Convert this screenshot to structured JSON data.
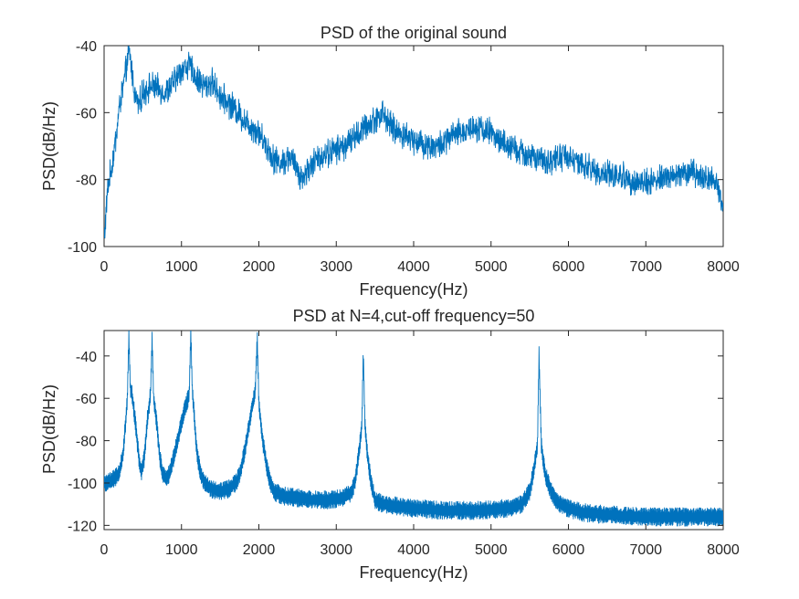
{
  "chart_data": [
    {
      "type": "line",
      "title": "PSD of the original sound",
      "xlabel": "Frequency(Hz)",
      "ylabel": "PSD(dB/Hz)",
      "xlim": [
        0,
        8000
      ],
      "ylim": [
        -100,
        -40
      ],
      "xticks": [
        0,
        1000,
        2000,
        3000,
        4000,
        5000,
        6000,
        7000,
        8000
      ],
      "yticks": [
        -100,
        -80,
        -60,
        -40
      ],
      "grid": false,
      "series_color": "#0072BD",
      "series": [
        {
          "x": [
            0,
            50,
            100,
            150,
            200,
            250,
            300,
            330,
            360,
            400,
            450,
            500,
            600,
            700,
            800,
            900,
            1000,
            1100,
            1200,
            1300,
            1400,
            1500,
            1600,
            1700,
            1800,
            1900,
            2000,
            2100,
            2200,
            2300,
            2400,
            2500,
            2560,
            2600,
            2700,
            2800,
            2900,
            3000,
            3100,
            3200,
            3300,
            3400,
            3500,
            3600,
            3700,
            3800,
            3900,
            4000,
            4100,
            4200,
            4300,
            4400,
            4500,
            4600,
            4700,
            4800,
            4900,
            5000,
            5100,
            5200,
            5300,
            5400,
            5500,
            5600,
            5700,
            5800,
            5900,
            6000,
            6100,
            6200,
            6300,
            6400,
            6500,
            6600,
            6700,
            6800,
            6900,
            7000,
            7100,
            7200,
            7300,
            7400,
            7500,
            7600,
            7700,
            7800,
            7900,
            8000
          ],
          "values": [
            -98,
            -82,
            -76,
            -68,
            -58,
            -52,
            -45,
            -42,
            -48,
            -55,
            -58,
            -54,
            -52,
            -53,
            -54,
            -51,
            -47,
            -46,
            -50,
            -52,
            -51,
            -55,
            -57,
            -59,
            -62,
            -64,
            -66,
            -70,
            -74,
            -75,
            -73,
            -77,
            -80,
            -78,
            -75,
            -73,
            -72,
            -71,
            -70,
            -68,
            -66,
            -64,
            -62,
            -60,
            -64,
            -66,
            -67,
            -68,
            -69,
            -70,
            -70,
            -69,
            -67,
            -66,
            -65,
            -64,
            -65,
            -66,
            -68,
            -70,
            -71,
            -72,
            -73,
            -74,
            -75,
            -74,
            -73,
            -73,
            -75,
            -76,
            -77,
            -78,
            -78,
            -79,
            -79,
            -80,
            -81,
            -81,
            -80,
            -80,
            -79,
            -79,
            -78,
            -78,
            -79,
            -80,
            -80,
            -88
          ]
        }
      ]
    },
    {
      "type": "line",
      "title": "PSD at N=4,cut-off frequency=50",
      "xlabel": "Frequency(Hz)",
      "ylabel": "PSD(dB/Hz)",
      "xlim": [
        0,
        8000
      ],
      "ylim": [
        -122,
        -28
      ],
      "xticks": [
        0,
        1000,
        2000,
        3000,
        4000,
        5000,
        6000,
        7000,
        8000
      ],
      "yticks": [
        -120,
        -100,
        -80,
        -60,
        -40
      ],
      "grid": false,
      "series_color": "#0072BD",
      "series": [
        {
          "x": [
            0,
            100,
            200,
            250,
            300,
            320,
            340,
            360,
            400,
            450,
            480,
            520,
            560,
            600,
            620,
            640,
            680,
            720,
            760,
            800,
            850,
            900,
            950,
            1000,
            1050,
            1100,
            1120,
            1140,
            1160,
            1200,
            1250,
            1300,
            1400,
            1500,
            1600,
            1700,
            1750,
            1800,
            1850,
            1900,
            1950,
            1980,
            2000,
            2050,
            2100,
            2150,
            2200,
            2300,
            2500,
            2700,
            2900,
            3100,
            3200,
            3250,
            3300,
            3330,
            3350,
            3370,
            3400,
            3450,
            3500,
            3600,
            3800,
            4000,
            4400,
            4800,
            5200,
            5400,
            5500,
            5560,
            5600,
            5620,
            5650,
            5700,
            5800,
            5900,
            6000,
            6200,
            6500,
            7000,
            7500,
            8000
          ],
          "values": [
            -100,
            -99,
            -95,
            -85,
            -60,
            -30,
            -55,
            -58,
            -70,
            -88,
            -95,
            -88,
            -70,
            -58,
            -32,
            -60,
            -72,
            -88,
            -96,
            -98,
            -95,
            -88,
            -80,
            -72,
            -64,
            -58,
            -29,
            -56,
            -66,
            -86,
            -96,
            -100,
            -103,
            -104,
            -103,
            -100,
            -96,
            -88,
            -78,
            -66,
            -58,
            -32,
            -62,
            -80,
            -92,
            -100,
            -104,
            -106,
            -107,
            -108,
            -108,
            -107,
            -104,
            -98,
            -84,
            -72,
            -38,
            -72,
            -86,
            -100,
            -108,
            -110,
            -111,
            -112,
            -113,
            -113,
            -112,
            -110,
            -104,
            -92,
            -82,
            -39,
            -82,
            -96,
            -106,
            -110,
            -112,
            -114,
            -115,
            -116,
            -116,
            -116
          ]
        }
      ]
    }
  ]
}
